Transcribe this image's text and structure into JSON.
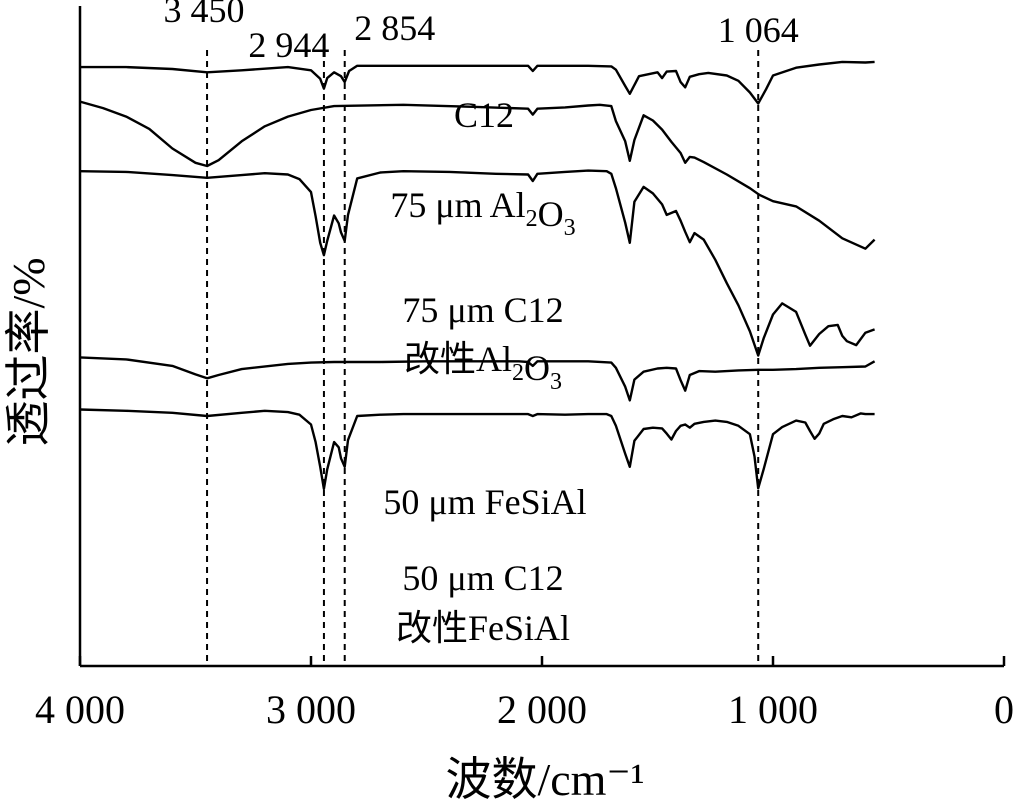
{
  "chart_data": {
    "type": "line",
    "xlabel": "波数/cm⁻¹",
    "ylabel": "透过率/%",
    "xlim": [
      4000,
      0
    ],
    "x_ticks": [
      "4 000",
      "3 000",
      "2 000",
      "1 000",
      "0"
    ],
    "x_tick_values": [
      4000,
      3000,
      2000,
      1000,
      0
    ],
    "peaks": [
      {
        "x": 3450,
        "label": "3 450"
      },
      {
        "x": 2944,
        "label": "2 944"
      },
      {
        "x": 2854,
        "label": "2 854"
      },
      {
        "x": 1064,
        "label": "1 064"
      }
    ],
    "series": [
      {
        "name": "C12",
        "name_lines": [
          [
            {
              "t": "C12"
            }
          ]
        ],
        "x": [
          4000,
          3800,
          3600,
          3450,
          3300,
          3100,
          3000,
          2960,
          2944,
          2930,
          2900,
          2870,
          2854,
          2835,
          2800,
          2600,
          2400,
          2200,
          2060,
          2040,
          2020,
          1900,
          1800,
          1700,
          1680,
          1640,
          1620,
          1580,
          1500,
          1480,
          1460,
          1420,
          1400,
          1380,
          1360,
          1320,
          1280,
          1200,
          1150,
          1100,
          1064,
          1030,
          1000,
          950,
          900,
          800,
          700,
          600,
          560
        ],
        "y": [
          8.0,
          8.0,
          8.3,
          8.8,
          8.5,
          8.0,
          8.5,
          9.8,
          11.3,
          9.7,
          8.8,
          9.4,
          10.3,
          8.6,
          7.8,
          7.8,
          7.8,
          7.8,
          7.8,
          8.6,
          7.8,
          7.8,
          7.8,
          7.9,
          8.4,
          10.9,
          12.1,
          9.4,
          8.8,
          9.7,
          8.7,
          8.6,
          10.3,
          11.1,
          9.5,
          9.1,
          8.9,
          9.3,
          10.1,
          11.9,
          13.6,
          11.4,
          9.3,
          8.7,
          8.1,
          7.6,
          7.2,
          7.3,
          7.2
        ]
      },
      {
        "name": "75 μm Al₂O₃",
        "name_lines": [
          [
            {
              "t": "75 μm Al"
            },
            {
              "t": "2",
              "sub": true
            },
            {
              "t": "O"
            },
            {
              "t": "3",
              "sub": true
            }
          ]
        ],
        "x": [
          4000,
          3900,
          3800,
          3700,
          3600,
          3500,
          3450,
          3400,
          3300,
          3200,
          3100,
          3000,
          2900,
          2600,
          2300,
          2060,
          2040,
          2020,
          1900,
          1800,
          1750,
          1700,
          1680,
          1640,
          1620,
          1600,
          1560,
          1520,
          1480,
          1440,
          1400,
          1380,
          1360,
          1340,
          1300,
          1200,
          1100,
          1060,
          1000,
          900,
          800,
          700,
          600,
          560
        ],
        "y": [
          13.3,
          14.3,
          15.6,
          17.5,
          20.5,
          22.7,
          23.2,
          22.3,
          19.4,
          17.1,
          15.6,
          14.6,
          14.0,
          13.8,
          14.1,
          14.4,
          15.3,
          14.4,
          14.2,
          13.9,
          13.8,
          14.0,
          16.3,
          19.4,
          22.4,
          19.2,
          15.4,
          16.2,
          17.6,
          19.5,
          21.2,
          22.7,
          21.8,
          21.9,
          22.6,
          24.5,
          26.6,
          27.6,
          28.6,
          29.4,
          31.6,
          34.3,
          35.9,
          34.5
        ]
      },
      {
        "name": "75 μm C12 改性Al₂O₃",
        "name_lines": [
          [
            {
              "t": "75 μm C12"
            }
          ],
          [
            {
              "t": "改性Al"
            },
            {
              "t": "2",
              "sub": true
            },
            {
              "t": "O"
            },
            {
              "t": "3",
              "sub": true
            }
          ]
        ],
        "x": [
          4000,
          3800,
          3600,
          3450,
          3300,
          3200,
          3100,
          3050,
          3000,
          2980,
          2960,
          2944,
          2930,
          2900,
          2880,
          2870,
          2854,
          2840,
          2800,
          2700,
          2600,
          2400,
          2200,
          2060,
          2040,
          2020,
          1900,
          1800,
          1720,
          1700,
          1680,
          1640,
          1620,
          1600,
          1560,
          1520,
          1480,
          1460,
          1420,
          1400,
          1380,
          1360,
          1340,
          1300,
          1250,
          1200,
          1150,
          1100,
          1064,
          1040,
          1000,
          960,
          900,
          860,
          840,
          800,
          760,
          720,
          700,
          680,
          640,
          600,
          560
        ],
        "y": [
          24.0,
          24.1,
          24.6,
          25.0,
          24.6,
          24.3,
          24.5,
          25.2,
          27.2,
          30.9,
          35.0,
          36.9,
          34.7,
          30.8,
          32.0,
          33.4,
          34.7,
          30.7,
          25.1,
          24.2,
          24.0,
          24.1,
          24.4,
          24.5,
          25.5,
          24.4,
          24.1,
          23.9,
          24.0,
          24.4,
          26.6,
          31.9,
          35.0,
          28.7,
          26.4,
          27.4,
          29.1,
          30.7,
          30.1,
          31.6,
          33.3,
          34.9,
          33.5,
          34.5,
          37.6,
          41.2,
          44.6,
          48.6,
          52.3,
          49.6,
          46.0,
          44.3,
          45.6,
          49.1,
          50.8,
          49.0,
          47.8,
          47.6,
          49.3,
          50.1,
          50.7,
          48.8,
          48.3
        ]
      },
      {
        "name": "50 μm FeSiAl",
        "name_lines": [
          [
            {
              "t": "50 μm FeSiAl"
            }
          ]
        ],
        "x": [
          4000,
          3800,
          3600,
          3500,
          3450,
          3400,
          3300,
          3100,
          3000,
          2900,
          2700,
          2500,
          2300,
          2100,
          2060,
          2040,
          2020,
          1900,
          1800,
          1700,
          1680,
          1640,
          1620,
          1600,
          1560,
          1500,
          1460,
          1420,
          1400,
          1380,
          1360,
          1320,
          1250,
          1150,
          1064,
          1000,
          900,
          800,
          700,
          600,
          560
        ],
        "y": [
          52.6,
          52.9,
          53.9,
          55.2,
          55.8,
          55.3,
          54.4,
          53.6,
          53.4,
          53.3,
          53.3,
          53.2,
          53.2,
          53.2,
          53.3,
          53.9,
          53.2,
          53.2,
          53.2,
          53.4,
          54.2,
          57.1,
          59.2,
          56.0,
          54.8,
          54.3,
          54.2,
          54.3,
          56.1,
          57.7,
          55.3,
          54.7,
          54.8,
          54.6,
          54.5,
          54.5,
          54.4,
          54.2,
          54.1,
          54.0,
          53.2
        ]
      },
      {
        "name": "50 μm C12 改性FeSiAl",
        "name_lines": [
          [
            {
              "t": "50 μm C12"
            }
          ],
          [
            {
              "t": "改性FeSiAl"
            }
          ]
        ],
        "x": [
          4000,
          3800,
          3600,
          3450,
          3300,
          3200,
          3100,
          3050,
          3000,
          2980,
          2960,
          2944,
          2930,
          2900,
          2880,
          2870,
          2854,
          2840,
          2800,
          2700,
          2600,
          2400,
          2200,
          2060,
          2040,
          2020,
          1900,
          1800,
          1720,
          1700,
          1680,
          1640,
          1620,
          1600,
          1560,
          1520,
          1480,
          1460,
          1440,
          1420,
          1400,
          1380,
          1360,
          1340,
          1300,
          1250,
          1200,
          1150,
          1100,
          1080,
          1064,
          1040,
          1000,
          960,
          900,
          860,
          840,
          820,
          800,
          780,
          740,
          700,
          660,
          620,
          600,
          560
        ],
        "y": [
          60.6,
          60.8,
          61.1,
          61.6,
          61.1,
          60.8,
          61.0,
          61.4,
          62.9,
          65.6,
          69.4,
          72.8,
          69.8,
          65.6,
          66.4,
          68.1,
          69.4,
          65.3,
          61.6,
          61.4,
          61.3,
          61.3,
          61.3,
          61.3,
          61.6,
          61.3,
          61.4,
          61.3,
          61.3,
          61.6,
          63.1,
          67.4,
          69.4,
          65.4,
          63.6,
          63.4,
          63.5,
          64.3,
          65.2,
          63.9,
          63.1,
          62.9,
          63.4,
          62.8,
          62.5,
          62.3,
          62.5,
          63.1,
          64.4,
          67.8,
          72.7,
          69.7,
          64.4,
          63.3,
          62.3,
          62.6,
          63.9,
          65.1,
          64.3,
          62.8,
          62.1,
          61.6,
          61.8,
          61.2,
          61.3,
          61.3
        ]
      }
    ]
  }
}
